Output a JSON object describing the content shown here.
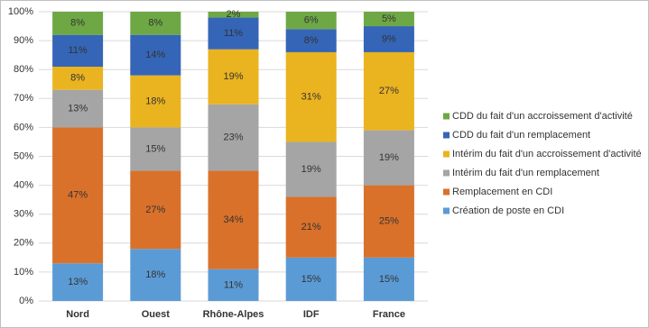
{
  "chart_data": {
    "type": "stacked_bar",
    "categories": [
      "Nord",
      "Ouest",
      "Rhône-Alpes",
      "IDF",
      "France"
    ],
    "series": [
      {
        "name": "Création de poste en CDI",
        "color": "#5b9bd5",
        "values": [
          13,
          18,
          11,
          15,
          15
        ],
        "value_labels": [
          "13%",
          "18%",
          "11%",
          "15%",
          "15%"
        ]
      },
      {
        "name": "Remplacement en CDI",
        "color": "#d9712b",
        "values": [
          47,
          27,
          34,
          21,
          25
        ],
        "value_labels": [
          "47%",
          "27%",
          "34%",
          "21%",
          "25%"
        ]
      },
      {
        "name": "Intérim du fait d'un remplacement",
        "color": "#a5a5a5",
        "values": [
          13,
          15,
          23,
          19,
          19
        ],
        "value_labels": [
          "13%",
          "15%",
          "23%",
          "19%",
          "19%"
        ]
      },
      {
        "name": "Intérim du fait d'un accroissement d'activité",
        "color": "#eab320",
        "values": [
          8,
          18,
          19,
          31,
          27
        ],
        "value_labels": [
          "8%",
          "18%",
          "19%",
          "31%",
          "27%"
        ]
      },
      {
        "name": "CDD du fait d'un remplacement",
        "color": "#3565b7",
        "values": [
          11,
          14,
          11,
          8,
          9
        ],
        "value_labels": [
          "11%",
          "14%",
          "11%",
          "8%",
          "9%"
        ]
      },
      {
        "name": "CDD du fait d'un accroissement d'activité",
        "color": "#6ea845",
        "values": [
          8,
          8,
          2,
          6,
          5
        ],
        "value_labels": [
          "8%",
          "8%",
          "2%",
          "6%",
          "5%"
        ]
      }
    ],
    "ylim": [
      0,
      100
    ],
    "yticks": [
      {
        "value": 0,
        "label": "0%"
      },
      {
        "value": 10,
        "label": "10%"
      },
      {
        "value": 20,
        "label": "20%"
      },
      {
        "value": 30,
        "label": "30%"
      },
      {
        "value": 40,
        "label": "40%"
      },
      {
        "value": 50,
        "label": "50%"
      },
      {
        "value": 60,
        "label": "60%"
      },
      {
        "value": 70,
        "label": "70%"
      },
      {
        "value": 80,
        "label": "80%"
      },
      {
        "value": 90,
        "label": "90%"
      },
      {
        "value": 100,
        "label": "100%"
      }
    ],
    "grid": true,
    "legend": "right"
  }
}
